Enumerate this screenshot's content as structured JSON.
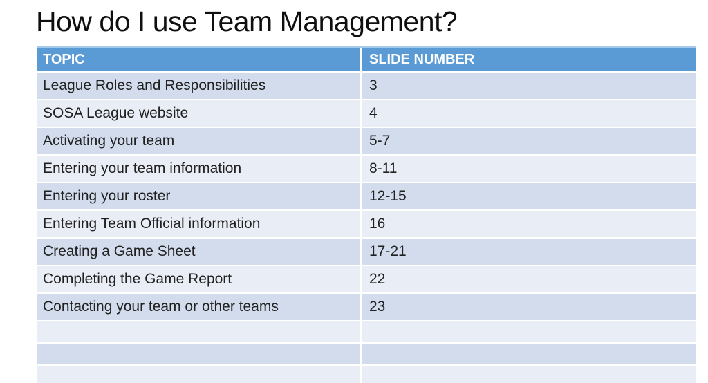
{
  "slide": {
    "title": "How do I use Team Management?"
  },
  "table": {
    "headers": [
      "TOPIC",
      "SLIDE NUMBER"
    ],
    "rows": [
      {
        "topic": "League Roles and Responsibilities",
        "slides": "3"
      },
      {
        "topic": "SOSA League website",
        "slides": "4"
      },
      {
        "topic": "Activating your team",
        "slides": "5-7"
      },
      {
        "topic": "Entering your team information",
        "slides": "8-11"
      },
      {
        "topic": "Entering your roster",
        "slides": "12-15"
      },
      {
        "topic": "Entering Team Official information",
        "slides": "16"
      },
      {
        "topic": "Creating a Game Sheet",
        "slides": "17-21"
      },
      {
        "topic": "Completing the Game Report",
        "slides": "22"
      },
      {
        "topic": "Contacting your team or other teams",
        "slides": "23"
      }
    ],
    "empty_row_count": 3
  },
  "colors": {
    "header_bg": "#5B9BD5",
    "header_text": "#FFFFFF",
    "band_dark": "#D2DCEC",
    "band_light": "#E9EDF6",
    "body_text": "#212121",
    "title_text": "#0F0F0F",
    "background": "#FFFFFF"
  }
}
